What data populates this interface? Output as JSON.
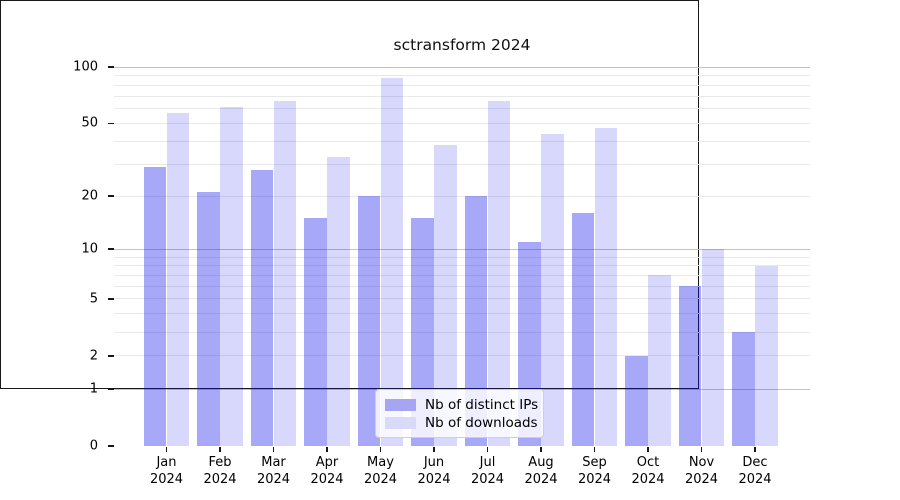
{
  "chart_data": {
    "type": "bar",
    "title": "sctransform 2024",
    "categories": [
      "Jan",
      "Feb",
      "Mar",
      "Apr",
      "May",
      "Jun",
      "Jul",
      "Aug",
      "Sep",
      "Oct",
      "Nov",
      "Dec"
    ],
    "year_label": "2024",
    "series": [
      {
        "name": "Nb of distinct IPs",
        "color": "#a5a5f1",
        "fill": "rgba(15,15,235,0.36)",
        "values": [
          29,
          21,
          28,
          15,
          20,
          15,
          20,
          11,
          16,
          2,
          6,
          3
        ]
      },
      {
        "name": "Nb of downloads",
        "color": "#d9d9f9",
        "fill": "rgba(15,15,235,0.16)",
        "values": [
          57,
          61,
          66,
          33,
          88,
          38,
          66,
          44,
          47,
          7,
          10,
          8
        ]
      }
    ],
    "yscale": "log1p",
    "ylim": [
      0,
      108
    ],
    "y_ticks": [
      0,
      1,
      2,
      5,
      10,
      20,
      50,
      100
    ],
    "y_gridlines_major": [
      1,
      10,
      100
    ],
    "y_gridlines_minor": [
      2,
      3,
      4,
      5,
      6,
      7,
      8,
      9,
      20,
      30,
      40,
      50,
      60,
      70,
      80,
      90
    ],
    "grid": "horizontal",
    "legend_position": "lower center",
    "axis_color": "#17171c",
    "background_color": "#ffffff"
  }
}
